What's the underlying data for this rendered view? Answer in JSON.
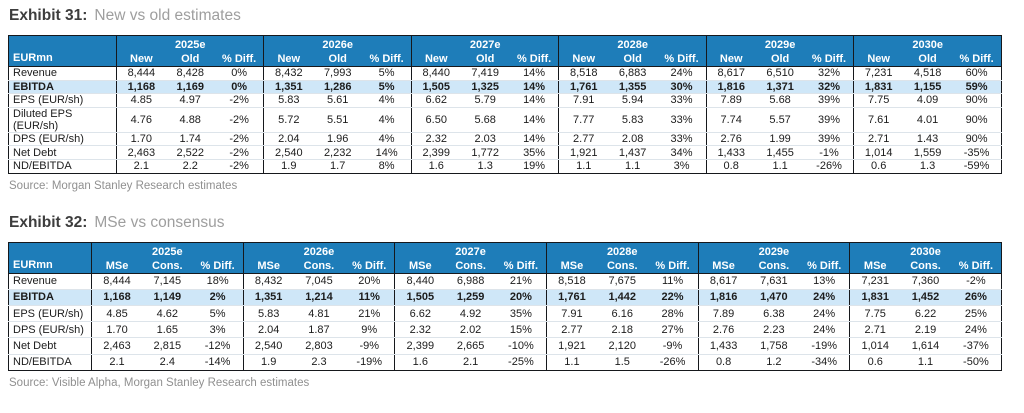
{
  "colors": {
    "header_blue": "#1e7db9",
    "highlight_blue": "#cfe7f8",
    "border_dark": "#16181c",
    "row_divider": "#dde4ea",
    "title_dark": "#3d3d3d",
    "title_gray": "#9e9e9e",
    "source_gray": "#909090",
    "text_dark": "#1c1c1c"
  },
  "exhibits": [
    {
      "id": "exhibit-31",
      "label": "Exhibit 31:",
      "title": "New vs old estimates",
      "source": "Source: Morgan Stanley Research estimates",
      "first_col_header": "EURmn",
      "col_headers": [
        "New",
        "Old",
        "% Diff."
      ],
      "years": [
        "2025e",
        "2026e",
        "2027e",
        "2028e",
        "2029e",
        "2030e"
      ],
      "rows": [
        {
          "label": "Revenue",
          "highlight": false,
          "cells": [
            [
              "8,444",
              "8,428",
              "0%"
            ],
            [
              "8,432",
              "7,993",
              "5%"
            ],
            [
              "8,440",
              "7,419",
              "14%"
            ],
            [
              "8,518",
              "6,883",
              "24%"
            ],
            [
              "8,617",
              "6,510",
              "32%"
            ],
            [
              "7,231",
              "4,518",
              "60%"
            ]
          ]
        },
        {
          "label": "EBITDA",
          "highlight": true,
          "cells": [
            [
              "1,168",
              "1,169",
              "0%"
            ],
            [
              "1,351",
              "1,286",
              "5%"
            ],
            [
              "1,505",
              "1,325",
              "14%"
            ],
            [
              "1,761",
              "1,355",
              "30%"
            ],
            [
              "1,816",
              "1,371",
              "32%"
            ],
            [
              "1,831",
              "1,155",
              "59%"
            ]
          ]
        },
        {
          "label": "EPS (EUR/sh)",
          "highlight": false,
          "cells": [
            [
              "4.85",
              "4.97",
              "-2%"
            ],
            [
              "5.83",
              "5.61",
              "4%"
            ],
            [
              "6.62",
              "5.79",
              "14%"
            ],
            [
              "7.91",
              "5.94",
              "33%"
            ],
            [
              "7.89",
              "5.68",
              "39%"
            ],
            [
              "7.75",
              "4.09",
              "90%"
            ]
          ]
        },
        {
          "label": "Diluted EPS (EUR/sh)",
          "highlight": false,
          "cells": [
            [
              "4.76",
              "4.88",
              "-2%"
            ],
            [
              "5.72",
              "5.51",
              "4%"
            ],
            [
              "6.50",
              "5.68",
              "14%"
            ],
            [
              "7.77",
              "5.83",
              "33%"
            ],
            [
              "7.74",
              "5.57",
              "39%"
            ],
            [
              "7.61",
              "4.01",
              "90%"
            ]
          ]
        },
        {
          "label": "DPS (EUR/sh)",
          "highlight": false,
          "cells": [
            [
              "1.70",
              "1.74",
              "-2%"
            ],
            [
              "2.04",
              "1.96",
              "4%"
            ],
            [
              "2.32",
              "2.03",
              "14%"
            ],
            [
              "2.77",
              "2.08",
              "33%"
            ],
            [
              "2.76",
              "1.99",
              "39%"
            ],
            [
              "2.71",
              "1.43",
              "90%"
            ]
          ]
        },
        {
          "label": "Net Debt",
          "highlight": false,
          "cells": [
            [
              "2,463",
              "2,522",
              "-2%"
            ],
            [
              "2,540",
              "2,232",
              "14%"
            ],
            [
              "2,399",
              "1,772",
              "35%"
            ],
            [
              "1,921",
              "1,437",
              "34%"
            ],
            [
              "1,433",
              "1,455",
              "-1%"
            ],
            [
              "1,014",
              "1,559",
              "-35%"
            ]
          ]
        },
        {
          "label": "ND/EBITDA",
          "highlight": false,
          "cells": [
            [
              "2.1",
              "2.2",
              "-2%"
            ],
            [
              "1.9",
              "1.7",
              "8%"
            ],
            [
              "1.6",
              "1.3",
              "19%"
            ],
            [
              "1.1",
              "1.1",
              "3%"
            ],
            [
              "0.8",
              "1.1",
              "-26%"
            ],
            [
              "0.6",
              "1.3",
              "-59%"
            ]
          ]
        }
      ]
    },
    {
      "id": "exhibit-32",
      "label": "Exhibit 32:",
      "title": "MSe vs consensus",
      "source": "Source: Visible Alpha, Morgan Stanley Research estimates",
      "first_col_header": "EURmn",
      "col_headers": [
        "MSe",
        "Cons.",
        "% Diff."
      ],
      "years": [
        "2025e",
        "2026e",
        "2027e",
        "2028e",
        "2029e",
        "2030e"
      ],
      "rows": [
        {
          "label": "Revenue",
          "highlight": false,
          "cells": [
            [
              "8,444",
              "7,145",
              "18%"
            ],
            [
              "8,432",
              "7,045",
              "20%"
            ],
            [
              "8,440",
              "6,988",
              "21%"
            ],
            [
              "8,518",
              "7,675",
              "11%"
            ],
            [
              "8,617",
              "7,631",
              "13%"
            ],
            [
              "7,231",
              "7,360",
              "-2%"
            ]
          ]
        },
        {
          "label": "EBITDA",
          "highlight": true,
          "cells": [
            [
              "1,168",
              "1,149",
              "2%"
            ],
            [
              "1,351",
              "1,214",
              "11%"
            ],
            [
              "1,505",
              "1,259",
              "20%"
            ],
            [
              "1,761",
              "1,442",
              "22%"
            ],
            [
              "1,816",
              "1,470",
              "24%"
            ],
            [
              "1,831",
              "1,452",
              "26%"
            ]
          ]
        },
        {
          "label": "EPS (EUR/sh)",
          "highlight": false,
          "cells": [
            [
              "4.85",
              "4.62",
              "5%"
            ],
            [
              "5.83",
              "4.81",
              "21%"
            ],
            [
              "6.62",
              "4.92",
              "35%"
            ],
            [
              "7.91",
              "6.16",
              "28%"
            ],
            [
              "7.89",
              "6.38",
              "24%"
            ],
            [
              "7.75",
              "6.22",
              "25%"
            ]
          ]
        },
        {
          "label": "DPS (EUR/sh)",
          "highlight": false,
          "cells": [
            [
              "1.70",
              "1.65",
              "3%"
            ],
            [
              "2.04",
              "1.87",
              "9%"
            ],
            [
              "2.32",
              "2.02",
              "15%"
            ],
            [
              "2.77",
              "2.18",
              "27%"
            ],
            [
              "2.76",
              "2.23",
              "24%"
            ],
            [
              "2.71",
              "2.19",
              "24%"
            ]
          ]
        },
        {
          "label": "Net Debt",
          "highlight": false,
          "cells": [
            [
              "2,463",
              "2,815",
              "-12%"
            ],
            [
              "2,540",
              "2,803",
              "-9%"
            ],
            [
              "2,399",
              "2,665",
              "-10%"
            ],
            [
              "1,921",
              "2,120",
              "-9%"
            ],
            [
              "1,433",
              "1,758",
              "-19%"
            ],
            [
              "1,014",
              "1,614",
              "-37%"
            ]
          ]
        },
        {
          "label": "ND/EBITDA",
          "highlight": false,
          "cells": [
            [
              "2.1",
              "2.4",
              "-14%"
            ],
            [
              "1.9",
              "2.3",
              "-19%"
            ],
            [
              "1.6",
              "2.1",
              "-25%"
            ],
            [
              "1.1",
              "1.5",
              "-26%"
            ],
            [
              "0.8",
              "1.2",
              "-34%"
            ],
            [
              "0.6",
              "1.1",
              "-50%"
            ]
          ]
        }
      ]
    }
  ]
}
